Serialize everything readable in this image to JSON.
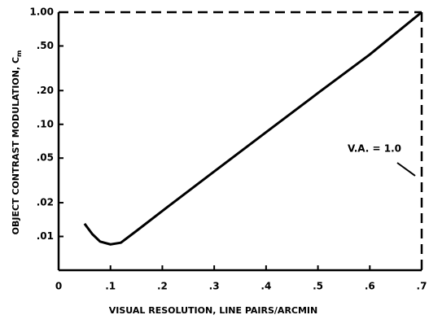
{
  "chart_data": {
    "type": "line",
    "xlabel": "VISUAL RESOLUTION, LINE PAIRS/ARCMIN",
    "ylabel": "OBJECT CONTRAST MODULATION, C",
    "ylabel_subscript": "m",
    "annotation": "V.A. = 1.0",
    "x": [
      0.05,
      0.065,
      0.08,
      0.1,
      0.12,
      0.15,
      0.2,
      0.3,
      0.4,
      0.5,
      0.6,
      0.7
    ],
    "series": [
      {
        "color": "#000000",
        "values": [
          0.013,
          0.0105,
          0.009,
          0.0085,
          0.0088,
          0.0112,
          0.0169,
          0.038,
          0.085,
          0.19,
          0.42,
          1.0
        ]
      }
    ],
    "xlim": [
      0,
      0.7
    ],
    "xticks": [
      0,
      {
        "value": 0.1,
        "label": ".1"
      },
      {
        "value": 0.2,
        "label": ".2"
      },
      {
        "value": 0.3,
        "label": ".3"
      },
      {
        "value": 0.4,
        "label": ".4"
      },
      {
        "value": 0.5,
        "label": ".5"
      },
      {
        "value": 0.6,
        "label": ".6"
      },
      {
        "value": 0.7,
        "label": ".7"
      }
    ],
    "ylim": [
      0.005,
      1
    ],
    "yticks": [
      {
        "value": 1,
        "label": "1.00"
      },
      {
        "value": 0.5,
        "label": ".50"
      },
      {
        "value": 0.2,
        "label": ".20"
      },
      {
        "value": 0.1,
        "label": ".10"
      },
      {
        "value": 0.05,
        "label": ".05"
      },
      {
        "value": 0.02,
        "label": ".02"
      },
      {
        "value": 0.01,
        "label": ".01"
      }
    ],
    "ylog": true,
    "grid": false
  }
}
